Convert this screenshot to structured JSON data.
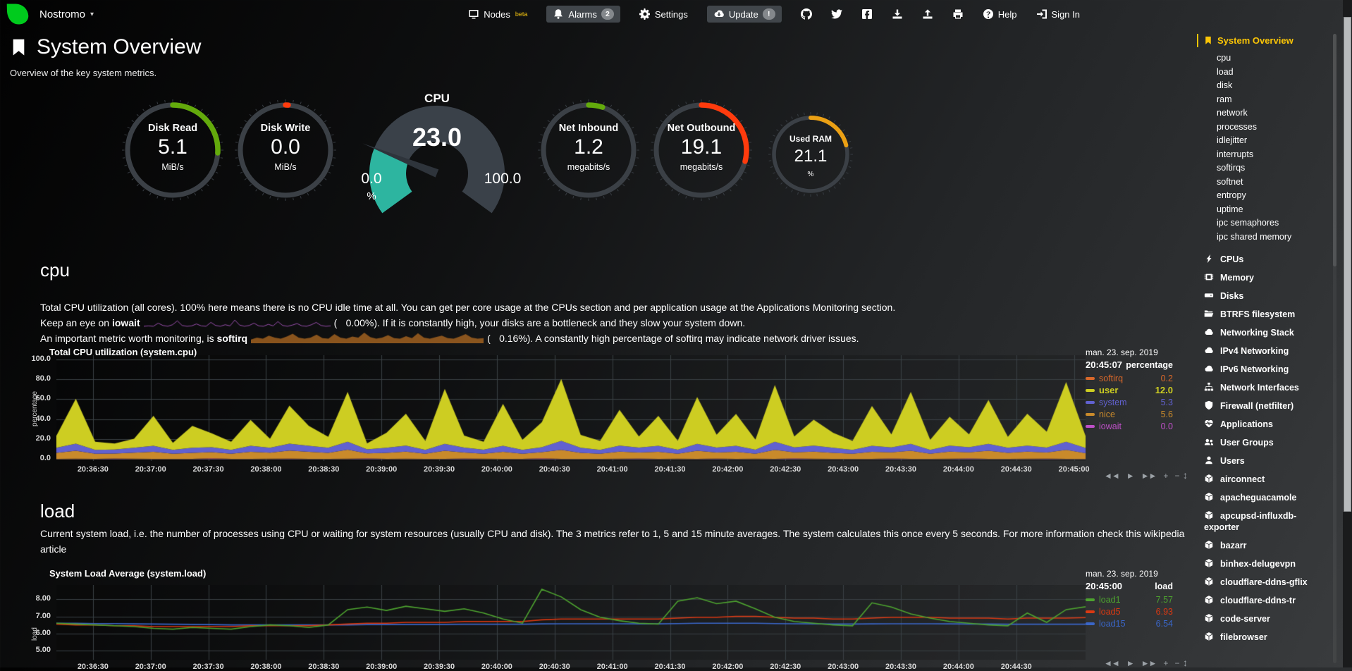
{
  "colors": {
    "logo_green": "#00CB1D",
    "accent_yellow": "#FBC506",
    "badge_bg": "#84888C",
    "grid": "#3A4045",
    "axis_text": "#DADADA"
  },
  "navbar": {
    "hostname": "Nostromo",
    "caret": "▾",
    "nodes": {
      "label": "Nodes",
      "badge": "beta",
      "icon": "monitor-icon"
    },
    "alarms": {
      "label": "Alarms",
      "badge": "2",
      "icon": "bell-icon"
    },
    "settings": {
      "label": "Settings",
      "icon": "gear-icon"
    },
    "update": {
      "label": "Update",
      "badge": "!",
      "icon": "cloud-download-icon"
    },
    "icon_links": [
      {
        "icon": "github-icon"
      },
      {
        "icon": "twitter-icon"
      },
      {
        "icon": "facebook-icon"
      },
      {
        "icon": "download-icon"
      },
      {
        "icon": "upload-icon"
      },
      {
        "icon": "print-icon"
      }
    ],
    "help": {
      "label": "Help",
      "icon": "question-icon"
    },
    "signin": {
      "label": "Sign In",
      "icon": "signin-icon"
    }
  },
  "page": {
    "title": "System Overview",
    "subtitle": "Overview of the key system metrics.",
    "icon": "bookmark-icon"
  },
  "gauges": [
    {
      "kind": "ring",
      "title": "Disk Read",
      "value": "5.1",
      "units": "MiB/s",
      "color": "#63AA0C",
      "percent": 26
    },
    {
      "kind": "ring",
      "title": "Disk Write",
      "value": "0.0",
      "units": "MiB/s",
      "color": "#FF3B0D",
      "percent": 1
    },
    {
      "kind": "gauge",
      "title": "CPU",
      "value": "23.0",
      "min": "0.0",
      "max": "100.0",
      "units": "%",
      "color": "#2DB5A0",
      "percent": 23
    },
    {
      "kind": "ring",
      "title": "Net Inbound",
      "value": "1.2",
      "units": "megabits/s",
      "color": "#63AA0C",
      "percent": 5
    },
    {
      "kind": "ring",
      "title": "Net Outbound",
      "value": "19.1",
      "units": "megabits/s",
      "color": "#FF3B0D",
      "percent": 29
    },
    {
      "kind": "ring_small",
      "title": "Used RAM",
      "value": "21.1",
      "units": "%",
      "color": "#EBA014",
      "percent": 21
    }
  ],
  "cpu_section": {
    "heading": "cpu",
    "intro": "Total CPU utilization (all cores). 100% here means there is no CPU idle time at all. You can get per core usage at the CPUs section and per application usage at the Applications Monitoring section.",
    "iowait_prefix": "Keep an eye on ",
    "iowait_term": "iowait",
    "open_paren": "(",
    "iowait_value": "0.00%",
    "iowait_suffix": "). If it is constantly high, your disks are a bottleneck and they slow your system down.",
    "softirq_prefix": "An important metric worth monitoring, is ",
    "softirq_term": "softirq",
    "softirq_value": "0.16%",
    "softirq_suffix": "). A constantly high percentage of softirq may indicate network driver issues.",
    "sparklines": {
      "iowait": {
        "color": "#9A4FAE",
        "values": [
          0.1,
          0.15,
          0.1,
          0.5,
          0.2,
          0.1,
          0.3,
          0.8,
          0.2,
          0.1,
          0.15,
          0.4,
          0.15,
          0.1,
          0.6,
          0.2,
          0.1,
          0.3,
          0.15,
          0.9,
          0.25,
          0.1,
          0.2,
          0.5,
          0.15,
          0.1,
          0.35,
          0.15,
          0.7,
          0.2,
          0.1,
          0.25,
          0.45,
          0.15,
          0.1,
          0.3,
          0.6,
          0.2,
          0.1,
          0.15
        ]
      },
      "softirq": {
        "color": "#A96521",
        "values": [
          0.3,
          0.5,
          0.4,
          0.7,
          0.5,
          0.4,
          0.6,
          0.9,
          0.5,
          0.4,
          0.5,
          0.8,
          0.45,
          0.4,
          0.85,
          0.5,
          0.4,
          0.6,
          0.5,
          1.0,
          0.55,
          0.4,
          0.5,
          0.75,
          0.45,
          0.4,
          0.65,
          0.45,
          0.95,
          0.5,
          0.4,
          0.55,
          0.7,
          0.45,
          0.4,
          0.6,
          0.85,
          0.5,
          0.4,
          0.45
        ]
      }
    }
  },
  "load_section": {
    "heading": "load",
    "intro": "Current system load, i.e. the number of processes using CPU or waiting for system resources (usually CPU and disk). The 3 metrics refer to 1, 5 and 15 minute averages. The system calculates this once every 5 seconds. For more information check this wikipedia article"
  },
  "controls": {
    "rewind": "◄◄",
    "play": "►",
    "forward": "►►",
    "zoom_in": "+",
    "zoom_out": "−",
    "resize": "↕"
  },
  "chart_data": [
    {
      "id": "system.cpu",
      "type": "area-stacked",
      "title": "Total CPU utilization (system.cpu)",
      "date": "man. 23. sep. 2019",
      "time": "20:45:07",
      "legend_header": "percentage",
      "ylabel": "percentage",
      "ylim": [
        0,
        100
      ],
      "y_ticks": [
        100,
        80,
        60,
        40,
        20,
        0
      ],
      "y_tick_labels": [
        "100.0",
        "80.0",
        "60.0",
        "40.0",
        "20.0",
        "0.0"
      ],
      "x_tick_labels": [
        "20:36:30",
        "20:37:00",
        "20:37:30",
        "20:38:00",
        "20:38:30",
        "20:39:00",
        "20:39:30",
        "20:40:00",
        "20:40:30",
        "20:41:00",
        "20:41:30",
        "20:42:00",
        "20:42:30",
        "20:43:00",
        "20:43:30",
        "20:44:00",
        "20:44:30",
        "20:45:00"
      ],
      "series": [
        {
          "name": "iowait",
          "color": "#BE50C8",
          "values": [
            0,
            0,
            0,
            0.3,
            0,
            0,
            0,
            0,
            0.5,
            0,
            0,
            0,
            0.2,
            0,
            0,
            0,
            0.4,
            0,
            0,
            0,
            0,
            0.3,
            0,
            0,
            0,
            0.5,
            0,
            0,
            0,
            0,
            0.3,
            0,
            0,
            0,
            0.2,
            0,
            0,
            0,
            0.4,
            0,
            0,
            0,
            0,
            0.3,
            0,
            0,
            0,
            0.5,
            0,
            0,
            0,
            0.2,
            0,
            0
          ]
        },
        {
          "name": "softirq",
          "color": "#D9682A",
          "values": [
            0.2,
            0.3,
            0.2,
            0.2,
            0.3,
            0.2,
            0.2,
            0.2,
            0.3,
            0.2,
            0.2,
            0.3,
            0.2,
            0.2,
            0.2,
            0.3,
            0.2,
            0.2,
            0.3,
            0.2,
            0.2,
            0.2,
            0.3,
            0.2,
            0.2,
            0.3,
            0.2,
            0.2,
            0.2,
            0.3,
            0.2,
            0.2,
            0.3,
            0.2,
            0.2,
            0.2,
            0.3,
            0.2,
            0.2,
            0.3,
            0.2,
            0.2,
            0.2,
            0.3,
            0.2,
            0.2,
            0.3,
            0.2,
            0.2,
            0.2,
            0.3,
            0.2,
            0.2,
            0.2
          ]
        },
        {
          "name": "nice",
          "color": "#C98A2B",
          "values": [
            6,
            8,
            5,
            5,
            6,
            7,
            5,
            6,
            6,
            5,
            7,
            6,
            8,
            7,
            6,
            9,
            5,
            6,
            7,
            5,
            8,
            6,
            5,
            7,
            5,
            6,
            9,
            6,
            5,
            7,
            6,
            7,
            5,
            8,
            6,
            7,
            5,
            9,
            6,
            7,
            6,
            5,
            7,
            6,
            8,
            5,
            7,
            6,
            8,
            6,
            7,
            6,
            9,
            5.6
          ]
        },
        {
          "name": "system",
          "color": "#6161D0",
          "values": [
            5,
            7,
            4,
            4,
            5,
            6,
            4,
            5,
            5,
            4,
            6,
            5,
            7,
            6,
            5,
            8,
            4,
            5,
            6,
            4,
            7,
            5,
            4,
            6,
            4,
            5,
            9,
            5,
            4,
            6,
            5,
            6,
            4,
            7,
            5,
            6,
            4,
            8,
            5,
            6,
            5,
            4,
            6,
            5,
            7,
            4,
            6,
            5,
            7,
            5,
            6,
            5,
            8,
            5.3
          ]
        },
        {
          "name": "user",
          "color": "#CDCD22",
          "values": [
            12,
            45,
            8,
            6,
            9,
            30,
            7,
            22,
            14,
            8,
            26,
            9,
            38,
            20,
            11,
            50,
            6,
            15,
            32,
            9,
            55,
            12,
            8,
            42,
            10,
            25,
            62,
            13,
            9,
            36,
            11,
            30,
            9,
            47,
            13,
            32,
            10,
            57,
            11,
            26,
            15,
            9,
            40,
            13,
            52,
            10,
            29,
            13,
            44,
            11,
            32,
            16,
            60,
            12
          ]
        }
      ],
      "legend": [
        {
          "name": "softirq",
          "value": "0.2"
        },
        {
          "name": "user",
          "value": "12.0",
          "bold": true
        },
        {
          "name": "system",
          "value": "5.3"
        },
        {
          "name": "nice",
          "value": "5.6"
        },
        {
          "name": "iowait",
          "value": "0.0"
        }
      ]
    },
    {
      "id": "system.load",
      "type": "line",
      "title": "System Load Average (system.load)",
      "date": "man. 23. sep. 2019",
      "time": "20:45:00",
      "legend_header": "load",
      "ylabel": "load",
      "ylim": [
        4.45,
        8.85
      ],
      "y_ticks": [
        8,
        7,
        6,
        5
      ],
      "y_tick_labels": [
        "8.00",
        "7.00",
        "6.00",
        "5.00"
      ],
      "x_tick_labels": [
        "20:36:30",
        "20:37:00",
        "20:37:30",
        "20:38:00",
        "20:38:30",
        "20:39:00",
        "20:39:30",
        "20:40:00",
        "20:40:30",
        "20:41:00",
        "20:41:30",
        "20:42:00",
        "20:42:30",
        "20:43:00",
        "20:43:30",
        "20:44:00",
        "20:44:30"
      ],
      "series": [
        {
          "name": "load1",
          "color": "#4DA32F",
          "values": [
            6.6,
            6.55,
            6.5,
            6.45,
            6.4,
            6.3,
            6.25,
            6.35,
            6.3,
            6.25,
            6.4,
            6.5,
            6.45,
            6.35,
            6.5,
            7.4,
            7.55,
            7.35,
            7.6,
            7.45,
            7.3,
            7.45,
            7.2,
            6.85,
            6.6,
            8.6,
            8.15,
            7.4,
            6.95,
            6.75,
            6.6,
            6.55,
            7.9,
            8.1,
            7.75,
            7.9,
            7.45,
            6.95,
            6.7,
            6.6,
            6.5,
            6.45,
            7.8,
            7.55,
            7.15,
            6.9,
            6.7,
            6.6,
            6.5,
            6.45,
            7.2,
            6.65,
            7.4,
            7.57
          ]
        },
        {
          "name": "load5",
          "color": "#DC3912",
          "values": [
            6.55,
            6.5,
            6.5,
            6.45,
            6.45,
            6.4,
            6.4,
            6.4,
            6.4,
            6.4,
            6.45,
            6.45,
            6.45,
            6.45,
            6.5,
            6.55,
            6.6,
            6.6,
            6.65,
            6.65,
            6.65,
            6.7,
            6.7,
            6.7,
            6.7,
            6.8,
            6.85,
            6.85,
            6.85,
            6.85,
            6.85,
            6.85,
            6.9,
            6.95,
            6.95,
            7.0,
            7.0,
            6.95,
            6.9,
            6.9,
            6.85,
            6.85,
            6.9,
            6.95,
            6.95,
            6.95,
            6.9,
            6.9,
            6.9,
            6.85,
            6.9,
            6.9,
            6.9,
            6.93
          ]
        },
        {
          "name": "load15",
          "color": "#3A66C8",
          "values": [
            6.6,
            6.6,
            6.58,
            6.58,
            6.56,
            6.55,
            6.54,
            6.53,
            6.52,
            6.5,
            6.5,
            6.5,
            6.5,
            6.5,
            6.5,
            6.5,
            6.52,
            6.52,
            6.53,
            6.53,
            6.53,
            6.54,
            6.54,
            6.54,
            6.54,
            6.56,
            6.57,
            6.57,
            6.57,
            6.57,
            6.56,
            6.56,
            6.58,
            6.6,
            6.6,
            6.6,
            6.6,
            6.58,
            6.57,
            6.56,
            6.55,
            6.55,
            6.56,
            6.57,
            6.57,
            6.57,
            6.56,
            6.55,
            6.55,
            6.54,
            6.54,
            6.54,
            6.54,
            6.54
          ]
        }
      ],
      "legend": [
        {
          "name": "load1",
          "value": "7.57"
        },
        {
          "name": "load5",
          "value": "6.93"
        },
        {
          "name": "load15",
          "value": "6.54"
        }
      ]
    }
  ],
  "sidebar": {
    "active": {
      "label": "System Overview",
      "icon": "bookmark-icon"
    },
    "subitems": [
      "cpu",
      "load",
      "disk",
      "ram",
      "network",
      "processes",
      "idlejitter",
      "interrupts",
      "softirqs",
      "softnet",
      "entropy",
      "uptime",
      "ipc semaphores",
      "ipc shared memory"
    ],
    "sections": [
      {
        "label": "CPUs",
        "icon": "bolt-icon"
      },
      {
        "label": "Memory",
        "icon": "memory-icon"
      },
      {
        "label": "Disks",
        "icon": "disk-icon"
      },
      {
        "label": "BTRFS filesystem",
        "icon": "folder-open-icon"
      },
      {
        "label": "Networking Stack",
        "icon": "cloud-icon"
      },
      {
        "label": "IPv4 Networking",
        "icon": "cloud-icon"
      },
      {
        "label": "IPv6 Networking",
        "icon": "cloud-icon"
      },
      {
        "label": "Network Interfaces",
        "icon": "sitemap-icon"
      },
      {
        "label": "Firewall (netfilter)",
        "icon": "shield-icon"
      },
      {
        "label": "Applications",
        "icon": "heartbeat-icon"
      },
      {
        "label": "User Groups",
        "icon": "users-icon"
      },
      {
        "label": "Users",
        "icon": "user-icon"
      },
      {
        "label": "airconnect",
        "icon": "cube-icon"
      },
      {
        "label": "apacheguacamole",
        "icon": "cube-icon"
      },
      {
        "label": "apcupsd-influxdb-exporter",
        "icon": "cube-icon"
      },
      {
        "label": "bazarr",
        "icon": "cube-icon"
      },
      {
        "label": "binhex-delugevpn",
        "icon": "cube-icon"
      },
      {
        "label": "cloudflare-ddns-gflix",
        "icon": "cube-icon"
      },
      {
        "label": "cloudflare-ddns-tr",
        "icon": "cube-icon"
      },
      {
        "label": "code-server",
        "icon": "cube-icon"
      },
      {
        "label": "filebrowser",
        "icon": "cube-icon"
      }
    ]
  }
}
